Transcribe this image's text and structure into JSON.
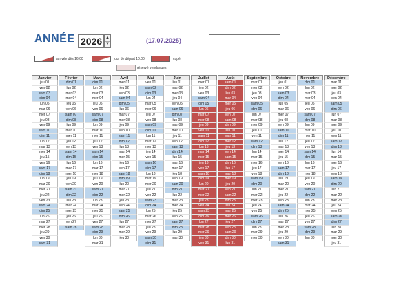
{
  "header": {
    "title": "ANNÉE :",
    "year": "2026",
    "date_text": "(17.07.2025)"
  },
  "legend": [
    {
      "label": "arrivée dès 16.00",
      "swatch": "arrival"
    },
    {
      "label": "jour de départ 10.00",
      "swatch": "departure"
    },
    {
      "label": "cupé",
      "swatch": "occupied"
    },
    {
      "label": "réservé vendanges",
      "swatch": "reserved"
    }
  ],
  "colors": {
    "weekend": "#bcd5ec",
    "occupied": "#c0504d",
    "title": "#2e5f9e",
    "date": "#6b4fa0"
  },
  "months": [
    {
      "name": "Janvier",
      "days": [
        "jeu 01",
        "ven 02",
        "sam 03",
        "dim 04",
        "lun 05",
        "mar 06",
        "mer 07",
        "jeu 08",
        "ven 09",
        "sam 10",
        "dim 11",
        "lun 12",
        "mar 13",
        "mer 14",
        "jeu 15",
        "ven 16",
        "sam 17",
        "dim 18",
        "lun 19",
        "mar 20",
        "mer 21",
        "jeu 22",
        "ven 23",
        "sam 24",
        "dim 25",
        "lun 26",
        "mar 27",
        "mer 28",
        "jeu 29",
        "ven 30",
        "sam 31"
      ]
    },
    {
      "name": "Février",
      "days": [
        "dim 01",
        "lun 02",
        "mar 03",
        "mer 04",
        "jeu 05",
        "ven 06",
        "sam 07",
        "dim 08",
        "lun 09",
        "mar 10",
        "mer 11",
        "jeu 12",
        "ven 13",
        "sam 14",
        "dim 15",
        "lun 16",
        "mar 17",
        "mer 18",
        "jeu 19",
        "ven 20",
        "sam 21",
        "dim 22",
        "lun 23",
        "mar 24",
        "mer 25",
        "jeu 26",
        "ven 27",
        "sam 28"
      ]
    },
    {
      "name": "Mars",
      "days": [
        "dim 01",
        "lun 02",
        "mar 03",
        "mer 04",
        "jeu 05",
        "ven 06",
        "sam 07",
        "dim 08",
        "lun 09",
        "mar 10",
        "mer 11",
        "jeu 12",
        "ven 13",
        "sam 14",
        "dim 15",
        "lun 16",
        "mar 17",
        "mer 18",
        "jeu 19",
        "ven 20",
        "sam 21",
        "dim 22",
        "lun 23",
        "mar 24",
        "mer 25",
        "jeu 26",
        "ven 27",
        "sam 28",
        "dim 29",
        "lun 30",
        "mar 31"
      ]
    },
    {
      "name": "Avril",
      "days": [
        "mer 01",
        "jeu 02",
        "ven 03",
        "sam 04",
        "dim 05",
        "lun 06",
        "mar 07",
        "mer 08",
        "jeu 09",
        "ven 10",
        "sam 11",
        "dim 12",
        "lun 13",
        "mar 14",
        "mer 15",
        "jeu 16",
        "ven 17",
        "sam 18",
        "dim 19",
        "lun 20",
        "mar 21",
        "mer 22",
        "jeu 23",
        "ven 24",
        "sam 25",
        "dim 26",
        "lun 27",
        "mar 28",
        "mer 29",
        "jeu 30"
      ]
    },
    {
      "name": "Mai",
      "days": [
        "ven 01",
        "sam 02",
        "dim 03",
        "lun 04",
        "mar 05",
        "mer 06",
        "jeu 07",
        "ven 08",
        "sam 09",
        "dim 10",
        "lun 11",
        "mar 12",
        "mer 13",
        "jeu 14",
        "ven 15",
        "sam 16",
        "dim 17",
        "lun 18",
        "mar 19",
        "mer 20",
        "jeu 21",
        "ven 22",
        "sam 23",
        "dim 24",
        "lun 25",
        "mar 26",
        "mer 27",
        "jeu 28",
        "ven 29",
        "sam 30",
        "dim 31"
      ]
    },
    {
      "name": "Juin",
      "days": [
        "lun 01",
        "mar 02",
        "mer 03",
        "jeu 04",
        "ven 05",
        "sam 06",
        "dim 07",
        "lun 08",
        "mar 09",
        "mer 10",
        "jeu 11",
        "ven 12",
        "sam 13",
        "dim 14",
        "lun 15",
        "mar 16",
        "mer 17",
        "jeu 18",
        "ven 19",
        "sam 20",
        "dim 21",
        "lun 22",
        "mar 23",
        "mer 24",
        "jeu 25",
        "ven 26",
        "sam 27",
        "dim 28",
        "lun 29",
        "mar 30"
      ]
    },
    {
      "name": "Juillet",
      "days": [
        "mer 01",
        "jeu 02",
        "ven 03",
        "sam 04",
        "dim 05",
        "lun 06",
        "mar 07",
        "mer 08",
        "jeu 09",
        "ven 10",
        "sam 11",
        "dim 12",
        "lun 13",
        "mar 14",
        "mer 15",
        "jeu 16",
        "ven 17",
        "sam 18",
        "dim 19",
        "lun 20",
        "mar 21",
        "mer 22",
        "jeu 23",
        "ven 24",
        "sam 25",
        "dim 26",
        "lun 27",
        "mar 28",
        "mer 29",
        "jeu 30",
        "ven 31"
      ]
    },
    {
      "name": "Août",
      "days": [
        "sam 01",
        "dim 02",
        "lun 03",
        "mar 04",
        "mer 05",
        "jeu 06",
        "ven 07",
        "sam 08",
        "dim 09",
        "lun 10",
        "mar 11",
        "mer 12",
        "jeu 13",
        "ven 14",
        "sam 15",
        "dim 16",
        "lun 17",
        "mar 18",
        "mer 19",
        "jeu 20",
        "ven 21",
        "sam 22",
        "dim 23",
        "lun 24",
        "mar 25",
        "mer 26",
        "jeu 27",
        "ven 28",
        "sam 29",
        "dim 30",
        "lun 31"
      ]
    },
    {
      "name": "Septembre",
      "days": [
        "mar 01",
        "mer 02",
        "jeu 03",
        "ven 04",
        "sam 05",
        "dim 06",
        "lun 07",
        "mar 08",
        "mer 09",
        "jeu 10",
        "ven 11",
        "sam 12",
        "dim 13",
        "lun 14",
        "mar 15",
        "mer 16",
        "jeu 17",
        "ven 18",
        "sam 19",
        "dim 20",
        "lun 21",
        "mar 22",
        "mer 23",
        "jeu 24",
        "ven 25",
        "sam 26",
        "dim 27",
        "lun 28",
        "mar 29",
        "mer 30"
      ]
    },
    {
      "name": "Octobre",
      "days": [
        "jeu 01",
        "ven 02",
        "sam 03",
        "dim 04",
        "lun 05",
        "mar 06",
        "mer 07",
        "jeu 08",
        "ven 09",
        "sam 10",
        "dim 11",
        "lun 12",
        "mar 13",
        "mer 14",
        "jeu 15",
        "ven 16",
        "sam 17",
        "dim 18",
        "lun 19",
        "mar 20",
        "mer 21",
        "jeu 22",
        "ven 23",
        "sam 24",
        "dim 25",
        "lun 26",
        "mar 27",
        "mer 28",
        "jeu 29",
        "ven 30",
        "sam 31"
      ]
    },
    {
      "name": "Novembre",
      "days": [
        "dim 01",
        "lun 02",
        "mar 03",
        "mer 04",
        "jeu 05",
        "ven 06",
        "sam 07",
        "dim 08",
        "lun 09",
        "mar 10",
        "mer 11",
        "jeu 12",
        "ven 13",
        "sam 14",
        "dim 15",
        "lun 16",
        "mar 17",
        "mer 18",
        "jeu 19",
        "ven 20",
        "sam 21",
        "dim 22",
        "lun 23",
        "mar 24",
        "mer 25",
        "jeu 26",
        "ven 27",
        "sam 28",
        "dim 29",
        "lun 30"
      ]
    },
    {
      "name": "Décembre",
      "days": [
        "mar 01",
        "mer 02",
        "jeu 03",
        "ven 04",
        "sam 05",
        "dim 06",
        "lun 07",
        "mar 08",
        "mer 09",
        "jeu 10",
        "ven 11",
        "sam 12",
        "dim 13",
        "lun 14",
        "mar 15",
        "mer 16",
        "jeu 17",
        "ven 18",
        "sam 19",
        "dim 20",
        "lun 21",
        "mar 22",
        "mer 23",
        "jeu 24",
        "ven 25",
        "sam 26",
        "dim 27",
        "lun 28",
        "mar 29",
        "mer 30",
        "jeu 31"
      ]
    }
  ],
  "occupied": [
    {
      "month": 6,
      "from": 5,
      "to": 30
    },
    {
      "month": 7,
      "from": 0,
      "to": 30
    }
  ]
}
